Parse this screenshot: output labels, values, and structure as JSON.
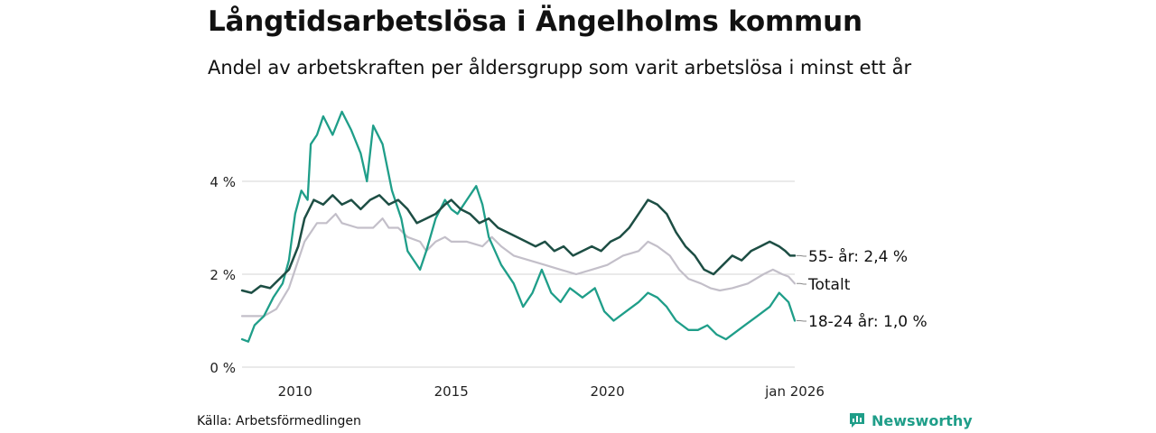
{
  "title": "Långtidsarbetslösa i Ängelholms kommun",
  "subtitle": "Andel av arbetskraften per åldersgrupp som varit arbetslösa i minst ett år",
  "source": "Källa: Arbetsförmedlingen",
  "brand": "Newsworthy",
  "colors": {
    "age55": "#1d4e44",
    "total": "#c3bfc9",
    "age18_24": "#1f9e89",
    "grid": "#dddddd",
    "brand": "#1f9e89"
  },
  "chart_data": {
    "type": "line",
    "title": "Långtidsarbetslösa i Ängelholms kommun",
    "subtitle": "Andel av arbetskraften per åldersgrupp som varit arbetslösa i minst ett år",
    "xlabel": "",
    "ylabel": "",
    "x_range": [
      2008.3,
      2026.0
    ],
    "ylim": [
      0,
      5.5
    ],
    "y_ticks": [
      {
        "value": 0,
        "label": "0 %"
      },
      {
        "value": 2,
        "label": "2 %"
      },
      {
        "value": 4,
        "label": "4 %"
      }
    ],
    "x_ticks": [
      {
        "value": 2010,
        "label": "2010"
      },
      {
        "value": 2015,
        "label": "2015"
      },
      {
        "value": 2020,
        "label": "2020"
      },
      {
        "value": 2026,
        "label": "jan 2026"
      }
    ],
    "grid": true,
    "legend": "direct labels at right end of lines",
    "series": [
      {
        "name": "Totalt",
        "key": "total",
        "end_label": "Totalt",
        "points": [
          [
            2008.3,
            1.1
          ],
          [
            2009.0,
            1.1
          ],
          [
            2009.4,
            1.25
          ],
          [
            2009.8,
            1.7
          ],
          [
            2010.1,
            2.3
          ],
          [
            2010.3,
            2.7
          ],
          [
            2010.5,
            2.9
          ],
          [
            2010.7,
            3.1
          ],
          [
            2011.0,
            3.1
          ],
          [
            2011.3,
            3.3
          ],
          [
            2011.5,
            3.1
          ],
          [
            2012.0,
            3.0
          ],
          [
            2012.5,
            3.0
          ],
          [
            2012.8,
            3.2
          ],
          [
            2013.0,
            3.0
          ],
          [
            2013.3,
            3.0
          ],
          [
            2013.6,
            2.8
          ],
          [
            2014.0,
            2.7
          ],
          [
            2014.2,
            2.5
          ],
          [
            2014.5,
            2.7
          ],
          [
            2014.8,
            2.8
          ],
          [
            2015.0,
            2.7
          ],
          [
            2015.5,
            2.7
          ],
          [
            2016.0,
            2.6
          ],
          [
            2016.3,
            2.8
          ],
          [
            2016.6,
            2.6
          ],
          [
            2017.0,
            2.4
          ],
          [
            2017.5,
            2.3
          ],
          [
            2018.0,
            2.2
          ],
          [
            2018.5,
            2.1
          ],
          [
            2019.0,
            2.0
          ],
          [
            2019.5,
            2.1
          ],
          [
            2020.0,
            2.2
          ],
          [
            2020.5,
            2.4
          ],
          [
            2021.0,
            2.5
          ],
          [
            2021.3,
            2.7
          ],
          [
            2021.6,
            2.6
          ],
          [
            2022.0,
            2.4
          ],
          [
            2022.3,
            2.1
          ],
          [
            2022.6,
            1.9
          ],
          [
            2023.0,
            1.8
          ],
          [
            2023.3,
            1.7
          ],
          [
            2023.6,
            1.65
          ],
          [
            2024.0,
            1.7
          ],
          [
            2024.5,
            1.8
          ],
          [
            2025.0,
            2.0
          ],
          [
            2025.3,
            2.1
          ],
          [
            2025.6,
            2.0
          ],
          [
            2025.8,
            1.95
          ],
          [
            2026.0,
            1.8
          ]
        ]
      },
      {
        "name": "18-24 år",
        "key": "age18_24",
        "end_label": "18-24 år: 1,0 %",
        "points": [
          [
            2008.3,
            0.6
          ],
          [
            2008.5,
            0.55
          ],
          [
            2008.7,
            0.9
          ],
          [
            2009.0,
            1.1
          ],
          [
            2009.3,
            1.5
          ],
          [
            2009.6,
            1.8
          ],
          [
            2009.8,
            2.3
          ],
          [
            2010.0,
            3.3
          ],
          [
            2010.2,
            3.8
          ],
          [
            2010.4,
            3.6
          ],
          [
            2010.5,
            4.8
          ],
          [
            2010.7,
            5.0
          ],
          [
            2010.9,
            5.4
          ],
          [
            2011.2,
            5.0
          ],
          [
            2011.5,
            5.5
          ],
          [
            2011.8,
            5.1
          ],
          [
            2012.1,
            4.6
          ],
          [
            2012.3,
            4.0
          ],
          [
            2012.5,
            5.2
          ],
          [
            2012.8,
            4.8
          ],
          [
            2013.1,
            3.8
          ],
          [
            2013.4,
            3.2
          ],
          [
            2013.6,
            2.5
          ],
          [
            2013.8,
            2.3
          ],
          [
            2014.0,
            2.1
          ],
          [
            2014.2,
            2.5
          ],
          [
            2014.5,
            3.2
          ],
          [
            2014.8,
            3.6
          ],
          [
            2015.0,
            3.4
          ],
          [
            2015.2,
            3.3
          ],
          [
            2015.5,
            3.6
          ],
          [
            2015.8,
            3.9
          ],
          [
            2016.0,
            3.5
          ],
          [
            2016.2,
            2.8
          ],
          [
            2016.6,
            2.2
          ],
          [
            2017.0,
            1.8
          ],
          [
            2017.3,
            1.3
          ],
          [
            2017.6,
            1.6
          ],
          [
            2017.9,
            2.1
          ],
          [
            2018.2,
            1.6
          ],
          [
            2018.5,
            1.4
          ],
          [
            2018.8,
            1.7
          ],
          [
            2019.2,
            1.5
          ],
          [
            2019.6,
            1.7
          ],
          [
            2019.9,
            1.2
          ],
          [
            2020.2,
            1.0
          ],
          [
            2020.6,
            1.2
          ],
          [
            2021.0,
            1.4
          ],
          [
            2021.3,
            1.6
          ],
          [
            2021.6,
            1.5
          ],
          [
            2021.9,
            1.3
          ],
          [
            2022.2,
            1.0
          ],
          [
            2022.6,
            0.8
          ],
          [
            2022.9,
            0.8
          ],
          [
            2023.2,
            0.9
          ],
          [
            2023.5,
            0.7
          ],
          [
            2023.8,
            0.6
          ],
          [
            2024.0,
            0.7
          ],
          [
            2024.4,
            0.9
          ],
          [
            2024.8,
            1.1
          ],
          [
            2025.2,
            1.3
          ],
          [
            2025.5,
            1.6
          ],
          [
            2025.8,
            1.4
          ],
          [
            2026.0,
            1.0
          ]
        ]
      },
      {
        "name": "55- år",
        "key": "age55",
        "end_label": "55- år: 2,4 %",
        "points": [
          [
            2008.3,
            1.65
          ],
          [
            2008.6,
            1.6
          ],
          [
            2008.9,
            1.75
          ],
          [
            2009.2,
            1.7
          ],
          [
            2009.5,
            1.9
          ],
          [
            2009.8,
            2.1
          ],
          [
            2010.1,
            2.6
          ],
          [
            2010.3,
            3.2
          ],
          [
            2010.6,
            3.6
          ],
          [
            2010.9,
            3.5
          ],
          [
            2011.2,
            3.7
          ],
          [
            2011.5,
            3.5
          ],
          [
            2011.8,
            3.6
          ],
          [
            2012.1,
            3.4
          ],
          [
            2012.4,
            3.6
          ],
          [
            2012.7,
            3.7
          ],
          [
            2013.0,
            3.5
          ],
          [
            2013.3,
            3.6
          ],
          [
            2013.6,
            3.4
          ],
          [
            2013.9,
            3.1
          ],
          [
            2014.2,
            3.2
          ],
          [
            2014.5,
            3.3
          ],
          [
            2014.8,
            3.5
          ],
          [
            2015.0,
            3.6
          ],
          [
            2015.3,
            3.4
          ],
          [
            2015.6,
            3.3
          ],
          [
            2015.9,
            3.1
          ],
          [
            2016.2,
            3.2
          ],
          [
            2016.5,
            3.0
          ],
          [
            2016.8,
            2.9
          ],
          [
            2017.1,
            2.8
          ],
          [
            2017.4,
            2.7
          ],
          [
            2017.7,
            2.6
          ],
          [
            2018.0,
            2.7
          ],
          [
            2018.3,
            2.5
          ],
          [
            2018.6,
            2.6
          ],
          [
            2018.9,
            2.4
          ],
          [
            2019.2,
            2.5
          ],
          [
            2019.5,
            2.6
          ],
          [
            2019.8,
            2.5
          ],
          [
            2020.1,
            2.7
          ],
          [
            2020.4,
            2.8
          ],
          [
            2020.7,
            3.0
          ],
          [
            2021.0,
            3.3
          ],
          [
            2021.3,
            3.6
          ],
          [
            2021.6,
            3.5
          ],
          [
            2021.9,
            3.3
          ],
          [
            2022.2,
            2.9
          ],
          [
            2022.5,
            2.6
          ],
          [
            2022.8,
            2.4
          ],
          [
            2023.1,
            2.1
          ],
          [
            2023.4,
            2.0
          ],
          [
            2023.7,
            2.2
          ],
          [
            2024.0,
            2.4
          ],
          [
            2024.3,
            2.3
          ],
          [
            2024.6,
            2.5
          ],
          [
            2024.9,
            2.6
          ],
          [
            2025.2,
            2.7
          ],
          [
            2025.5,
            2.6
          ],
          [
            2025.7,
            2.5
          ],
          [
            2025.85,
            2.4
          ],
          [
            2026.0,
            2.4
          ]
        ]
      }
    ]
  }
}
